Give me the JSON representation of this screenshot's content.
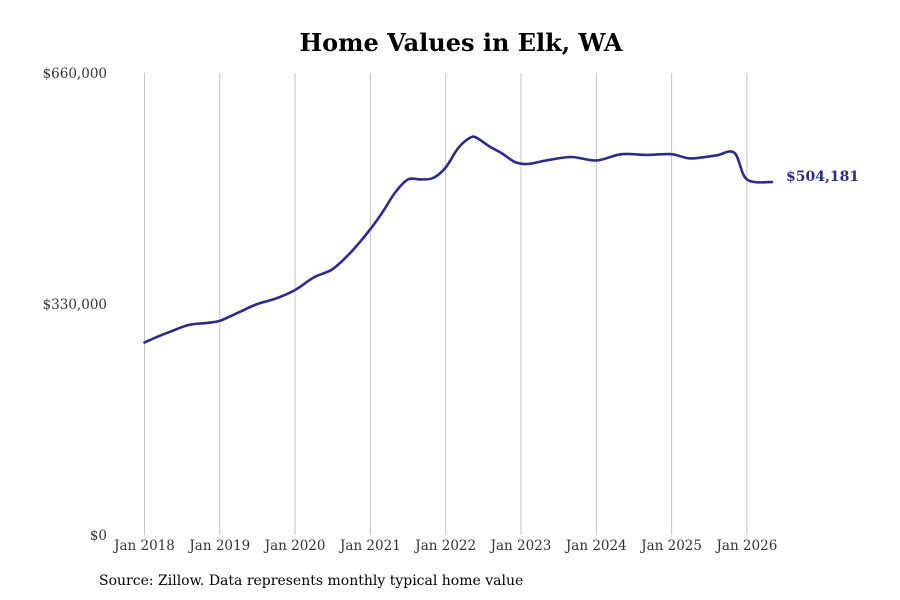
{
  "chart_data": {
    "type": "line",
    "title": "Home Values in Elk, WA",
    "xlabel": "",
    "ylabel": "",
    "y_ticks": [
      "$0",
      "$330,000",
      "$660,000"
    ],
    "y_tick_values": [
      0,
      330000,
      660000
    ],
    "ylim": [
      0,
      660000
    ],
    "x_ticks": [
      "Jan 2018",
      "Jan 2019",
      "Jan 2020",
      "Jan 2021",
      "Jan 2022",
      "Jan 2023",
      "Jan 2024",
      "Jan 2025",
      "Jan 2026"
    ],
    "x_tick_dates": [
      "2018-01",
      "2019-01",
      "2020-01",
      "2021-01",
      "2022-01",
      "2023-01",
      "2024-01",
      "2025-01",
      "2026-01"
    ],
    "xlim": [
      "2018-01",
      "2026-05"
    ],
    "grid": "vertical",
    "line_color": "#2e2a85",
    "series": [
      {
        "x": [
          "2018-01",
          "2018-03",
          "2018-05",
          "2018-08",
          "2018-11",
          "2019-01",
          "2019-04",
          "2019-07",
          "2019-10",
          "2020-01",
          "2020-04",
          "2020-07",
          "2020-10",
          "2021-01",
          "2021-03",
          "2021-05",
          "2021-07",
          "2021-09",
          "2021-11",
          "2022-01",
          "2022-03",
          "2022-05",
          "2022-06",
          "2022-08",
          "2022-10",
          "2022-12",
          "2023-02",
          "2023-05",
          "2023-09",
          "2024-01",
          "2024-05",
          "2024-09",
          "2025-01",
          "2025-04",
          "2025-08",
          "2025-11",
          "2026-01",
          "2026-05"
        ],
        "values": [
          275000,
          283000,
          290000,
          300000,
          303000,
          306000,
          318000,
          330000,
          338000,
          350000,
          368000,
          380000,
          405000,
          437000,
          462000,
          490000,
          508000,
          508000,
          510000,
          525000,
          553000,
          568000,
          567000,
          555000,
          545000,
          533000,
          530000,
          535000,
          540000,
          535000,
          544000,
          543000,
          544000,
          538000,
          542000,
          546000,
          508000,
          504181
        ]
      }
    ],
    "end_label": "$504,181",
    "source": "Source: Zillow. Data represents monthly typical home value"
  }
}
